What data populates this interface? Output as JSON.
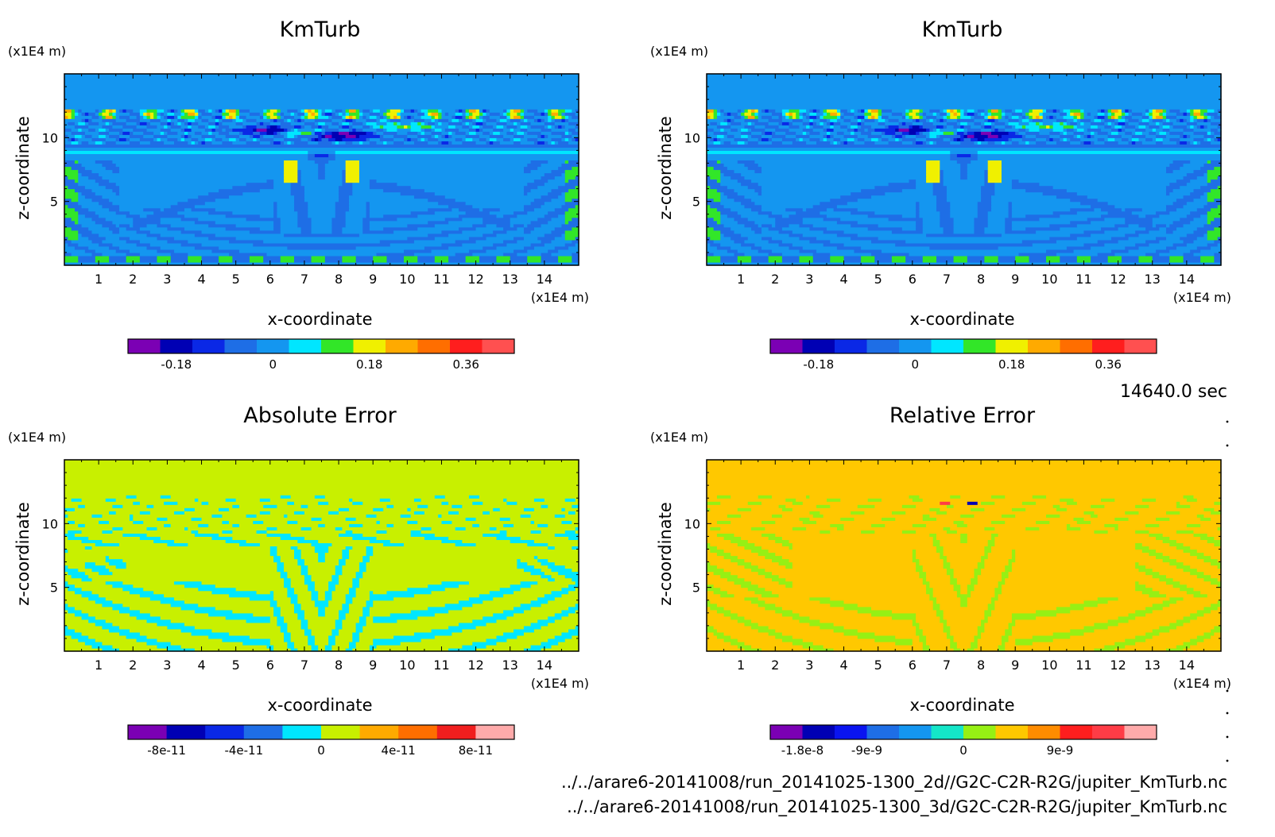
{
  "time_label": "14640.0 sec",
  "file_paths": [
    "../../arare6-20141008/run_20141025-1300_2d//G2C-C2R-R2G/jupiter_KmTurb.nc",
    "../../arare6-20141008/run_20141025-1300_3d/G2C-C2R-R2G/jupiter_KmTurb.nc"
  ],
  "chart_data": [
    {
      "type": "heatmap",
      "title": "KmTurb",
      "xlabel": "x-coordinate",
      "ylabel": "z-coordinate",
      "x_unit": "(x1E4 m)",
      "y_unit": "(x1E4 m)",
      "xlim": [
        0,
        15
      ],
      "ylim": [
        0,
        15
      ],
      "x_ticks": [
        "1",
        "2",
        "3",
        "4",
        "5",
        "6",
        "7",
        "8",
        "9",
        "10",
        "11",
        "12",
        "13",
        "14"
      ],
      "y_ticks": [
        "5",
        "10"
      ],
      "field": "km",
      "colorbar": {
        "colors": [
          "#7b00b4",
          "#0000b4",
          "#0a28e6",
          "#1e6ee6",
          "#1496f0",
          "#00e6ff",
          "#32e628",
          "#f0f000",
          "#ffaa00",
          "#ff6e00",
          "#ff1e1e",
          "#ff5050"
        ],
        "tick_labels": [
          "-0.18",
          "0",
          "0.18",
          "0.36"
        ]
      }
    },
    {
      "type": "heatmap",
      "title": "KmTurb",
      "xlabel": "x-coordinate",
      "ylabel": "z-coordinate",
      "x_unit": "(x1E4 m)",
      "y_unit": "(x1E4 m)",
      "xlim": [
        0,
        15
      ],
      "ylim": [
        0,
        15
      ],
      "x_ticks": [
        "1",
        "2",
        "3",
        "4",
        "5",
        "6",
        "7",
        "8",
        "9",
        "10",
        "11",
        "12",
        "13",
        "14"
      ],
      "y_ticks": [
        "5",
        "10"
      ],
      "field": "km",
      "colorbar": {
        "colors": [
          "#7b00b4",
          "#0000b4",
          "#0a28e6",
          "#1e6ee6",
          "#1496f0",
          "#00e6ff",
          "#32e628",
          "#f0f000",
          "#ffaa00",
          "#ff6e00",
          "#ff1e1e",
          "#ff5050"
        ],
        "tick_labels": [
          "-0.18",
          "0",
          "0.18",
          "0.36"
        ]
      }
    },
    {
      "type": "heatmap",
      "title": "Absolute Error",
      "xlabel": "x-coordinate",
      "ylabel": "z-coordinate",
      "x_unit": "(x1E4 m)",
      "y_unit": "(x1E4 m)",
      "xlim": [
        0,
        15
      ],
      "ylim": [
        0,
        15
      ],
      "x_ticks": [
        "1",
        "2",
        "3",
        "4",
        "5",
        "6",
        "7",
        "8",
        "9",
        "10",
        "11",
        "12",
        "13",
        "14"
      ],
      "y_ticks": [
        "5",
        "10"
      ],
      "field": "abs",
      "colorbar": {
        "colors": [
          "#7b00b4",
          "#0000b4",
          "#0a28e6",
          "#1e6ee6",
          "#00e6ff",
          "#c8f000",
          "#ffaa00",
          "#ff6e00",
          "#f01e1e",
          "#ffaaaa"
        ],
        "tick_labels": [
          "-8e-11",
          "-4e-11",
          "0",
          "4e-11",
          "8e-11"
        ]
      }
    },
    {
      "type": "heatmap",
      "title": "Relative Error",
      "xlabel": "x-coordinate",
      "ylabel": "z-coordinate",
      "x_unit": "(x1E4 m)",
      "y_unit": "(x1E4 m)",
      "xlim": [
        0,
        15
      ],
      "ylim": [
        0,
        15
      ],
      "x_ticks": [
        "1",
        "2",
        "3",
        "4",
        "5",
        "6",
        "7",
        "8",
        "9",
        "10",
        "11",
        "12",
        "13",
        "14"
      ],
      "y_ticks": [
        "5",
        "10"
      ],
      "field": "rel",
      "colorbar": {
        "colors": [
          "#7b00b4",
          "#0000b4",
          "#0a14f0",
          "#1e6ee6",
          "#1496f0",
          "#14e6c8",
          "#96f014",
          "#ffc800",
          "#ff8c00",
          "#ff1e1e",
          "#ff3c46",
          "#ffaaaa"
        ],
        "tick_labels": [
          "-1.8e-8",
          "-9e-9",
          "0",
          "9e-9"
        ]
      }
    }
  ]
}
